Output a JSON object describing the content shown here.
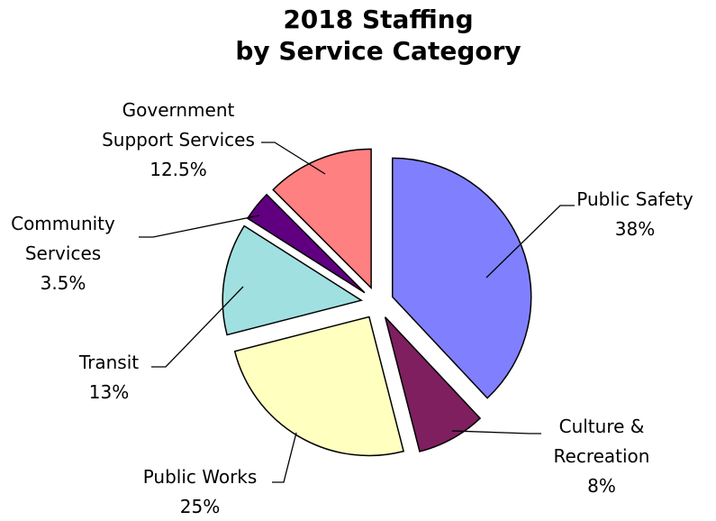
{
  "chart_data": {
    "type": "pie",
    "title_lines": [
      "2018 Staffing",
      "by  Service Category"
    ],
    "slices": [
      {
        "name": "Public Safety",
        "value": 38,
        "value_label": "38%",
        "color": "#8080FF",
        "label_lines": [
          "Public Safety",
          "38%"
        ]
      },
      {
        "name": "Culture & Recreation",
        "value": 8,
        "value_label": "8%",
        "color": "#7F1F5F",
        "label_lines": [
          "Culture &",
          "Recreation",
          "8%"
        ]
      },
      {
        "name": "Public Works",
        "value": 25,
        "value_label": "25%",
        "color": "#FFFFC0",
        "label_lines": [
          "Public Works",
          "25%"
        ]
      },
      {
        "name": "Transit",
        "value": 13,
        "value_label": "13%",
        "color": "#A0E0E0",
        "label_lines": [
          "Transit",
          "13%"
        ]
      },
      {
        "name": "Community Services",
        "value": 3.5,
        "value_label": "3.5%",
        "color": "#600080",
        "label_lines": [
          "Community",
          "Services",
          "3.5%"
        ]
      },
      {
        "name": "Government Support Services",
        "value": 12.5,
        "value_label": "12.5%",
        "color": "#FF8080",
        "label_lines": [
          "Government",
          "Support Services",
          "12.5%"
        ]
      }
    ],
    "exploded": true,
    "legend": "none"
  }
}
